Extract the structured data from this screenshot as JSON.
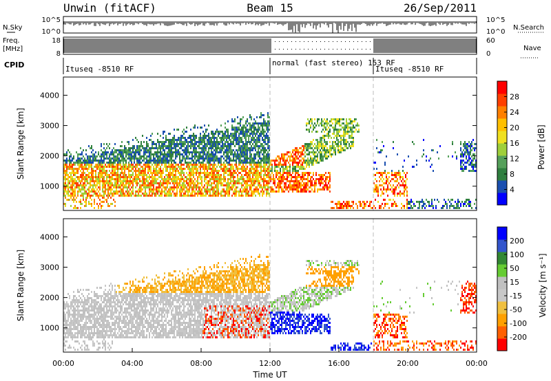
{
  "header": {
    "title": "Unwin (fitACF)",
    "beam": "Beam 15",
    "date": "26/Sep/2011"
  },
  "strips": {
    "nsky_label": "N.Sky",
    "nsearch_label": "N.Search",
    "nsky_ticks": [
      "10^5",
      "10^0"
    ],
    "nsearch_ticks": [
      "10^5",
      "10^0"
    ],
    "freq_label": "Freq.",
    "freq_unit": "[MHz]",
    "freq_ticks": [
      "18",
      "8"
    ],
    "nave_label": "Nave",
    "nave_ticks": [
      "60",
      "0"
    ],
    "cpid_label": "CPID",
    "cpid_segments": [
      {
        "label": "Ituseq -8510 RF",
        "start": 0,
        "end": 12
      },
      {
        "label": "normal (fast stereo) 153 RF",
        "start": 12,
        "end": 18
      },
      {
        "label": "Ituseq -8510 RF",
        "start": 18,
        "end": 24
      }
    ]
  },
  "colors": {
    "power": [
      "#0000ff",
      "#1a4fb0",
      "#2f7f3f",
      "#55a05a",
      "#9fcf3a",
      "#f0e020",
      "#ffc000",
      "#ff8000",
      "#ff4000",
      "#ff0000"
    ],
    "velocity": [
      "#ff0000",
      "#ff6000",
      "#ffa000",
      "#f0c040",
      "#c8c8c8",
      "#c0c0c0",
      "#66cc33",
      "#338833",
      "#3355cc",
      "#0000ff"
    ]
  },
  "chart_data": [
    {
      "type": "heatmap",
      "name": "power",
      "xlabel": "",
      "ylabel": "Slant Range [km]",
      "xlim": [
        0,
        24
      ],
      "ylim": [
        200,
        4600
      ],
      "yticks": [
        1000,
        2000,
        3000,
        4000
      ],
      "colorbar": {
        "label": "Power [dB]",
        "ticks": [
          4,
          8,
          12,
          16,
          20,
          24,
          28
        ],
        "range": [
          0,
          32
        ]
      }
    },
    {
      "type": "heatmap",
      "name": "velocity",
      "xlabel": "Time UT",
      "ylabel": "Slant Range [km]",
      "xlim": [
        0,
        24
      ],
      "ylim": [
        200,
        4600
      ],
      "yticks": [
        1000,
        2000,
        3000,
        4000
      ],
      "xticks": [
        "00:00",
        "04:00",
        "08:00",
        "12:00",
        "16:00",
        "20:00",
        "00:00"
      ],
      "colorbar": {
        "label": "Velocity [m s⁻¹]",
        "ticks": [
          "-200",
          "-100",
          "-50",
          "-15",
          "15",
          "50",
          "100",
          "200"
        ]
      }
    }
  ]
}
